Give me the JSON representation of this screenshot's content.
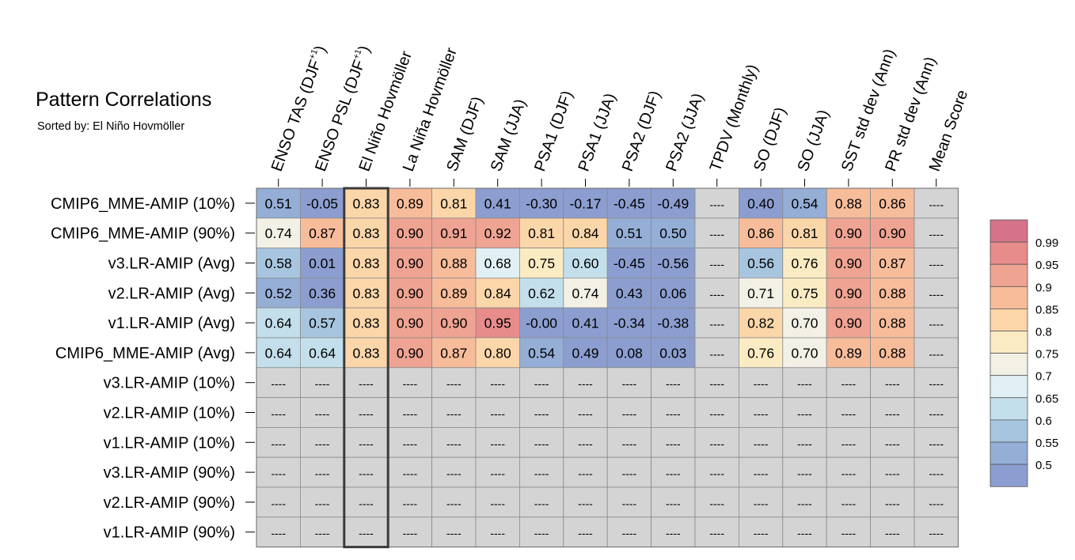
{
  "chart_data": {
    "type": "heatmap",
    "title": "Pattern Correlations",
    "subtitle": "Sorted by: El Niño Hovmöller",
    "columns": [
      {
        "base": "ENSO TAS (DJF",
        "sup": "+1",
        "tail": ")"
      },
      {
        "base": "ENSO PSL (DJF",
        "sup": "+1",
        "tail": ")"
      },
      {
        "base": "El Niño Hovmöller"
      },
      {
        "base": "La Niña Hovmöller"
      },
      {
        "base": "SAM (DJF)"
      },
      {
        "base": "SAM (JJA)"
      },
      {
        "base": "PSA1 (DJF)"
      },
      {
        "base": "PSA1 (JJA)"
      },
      {
        "base": "PSA2 (DJF)"
      },
      {
        "base": "PSA2 (JJA)"
      },
      {
        "base": "TPDV (Monthly)"
      },
      {
        "base": "SO (DJF)"
      },
      {
        "base": "SO (JJA)"
      },
      {
        "base": "SST std dev (Ann)"
      },
      {
        "base": "PR std dev (Ann)"
      },
      {
        "base": "Mean Score"
      }
    ],
    "rows": [
      "CMIP6_MME-AMIP (10%)",
      "CMIP6_MME-AMIP (90%)",
      "v3.LR-AMIP (Avg)",
      "v2.LR-AMIP (Avg)",
      "v1.LR-AMIP (Avg)",
      "CMIP6_MME-AMIP (Avg)",
      "v3.LR-AMIP (10%)",
      "v2.LR-AMIP (10%)",
      "v1.LR-AMIP (10%)",
      "v3.LR-AMIP (90%)",
      "v2.LR-AMIP (90%)",
      "v1.LR-AMIP (90%)"
    ],
    "values": [
      [
        "0.51",
        "-0.05",
        "0.83",
        "0.89",
        "0.81",
        "0.41",
        "-0.30",
        "-0.17",
        "-0.45",
        "-0.49",
        "----",
        "0.40",
        "0.54",
        "0.88",
        "0.86",
        "----"
      ],
      [
        "0.74",
        "0.87",
        "0.83",
        "0.90",
        "0.91",
        "0.92",
        "0.81",
        "0.84",
        "0.51",
        "0.50",
        "----",
        "0.86",
        "0.81",
        "0.90",
        "0.90",
        "----"
      ],
      [
        "0.58",
        "0.01",
        "0.83",
        "0.90",
        "0.88",
        "0.68",
        "0.75",
        "0.60",
        "-0.45",
        "-0.56",
        "----",
        "0.56",
        "0.76",
        "0.90",
        "0.87",
        "----"
      ],
      [
        "0.52",
        "0.36",
        "0.83",
        "0.90",
        "0.89",
        "0.84",
        "0.62",
        "0.74",
        "0.43",
        "0.06",
        "----",
        "0.71",
        "0.75",
        "0.90",
        "0.88",
        "----"
      ],
      [
        "0.64",
        "0.57",
        "0.83",
        "0.90",
        "0.90",
        "0.95",
        "-0.00",
        "0.41",
        "-0.34",
        "-0.38",
        "----",
        "0.82",
        "0.70",
        "0.90",
        "0.88",
        "----"
      ],
      [
        "0.64",
        "0.64",
        "0.83",
        "0.90",
        "0.87",
        "0.80",
        "0.54",
        "0.49",
        "0.08",
        "0.03",
        "----",
        "0.76",
        "0.70",
        "0.89",
        "0.88",
        "----"
      ],
      [
        "----",
        "----",
        "----",
        "----",
        "----",
        "----",
        "----",
        "----",
        "----",
        "----",
        "----",
        "----",
        "----",
        "----",
        "----",
        "----"
      ],
      [
        "----",
        "----",
        "----",
        "----",
        "----",
        "----",
        "----",
        "----",
        "----",
        "----",
        "----",
        "----",
        "----",
        "----",
        "----",
        "----"
      ],
      [
        "----",
        "----",
        "----",
        "----",
        "----",
        "----",
        "----",
        "----",
        "----",
        "----",
        "----",
        "----",
        "----",
        "----",
        "----",
        "----"
      ],
      [
        "----",
        "----",
        "----",
        "----",
        "----",
        "----",
        "----",
        "----",
        "----",
        "----",
        "----",
        "----",
        "----",
        "----",
        "----",
        "----"
      ],
      [
        "----",
        "----",
        "----",
        "----",
        "----",
        "----",
        "----",
        "----",
        "----",
        "----",
        "----",
        "----",
        "----",
        "----",
        "----",
        "----"
      ],
      [
        "----",
        "----",
        "----",
        "----",
        "----",
        "----",
        "----",
        "----",
        "----",
        "----",
        "----",
        "----",
        "----",
        "----",
        "----",
        "----"
      ]
    ],
    "highlight_column": "El Niño Hovmöller",
    "colorbar": {
      "tick_labels": [
        "0.99",
        "0.95",
        "0.9",
        "0.85",
        "0.8",
        "0.75",
        "0.7",
        "0.65",
        "0.6",
        "0.55",
        "0.5"
      ],
      "bin_colors": [
        "#d4738a",
        "#e78b8b",
        "#efa392",
        "#f7bc9a",
        "#fad6a9",
        "#fbebc3",
        "#f3f1e6",
        "#e0f0f4",
        "#c3dfeb",
        "#a8c5df",
        "#94aed6",
        "#8c9ed0"
      ]
    },
    "missing_color": "#d4d4d4"
  }
}
